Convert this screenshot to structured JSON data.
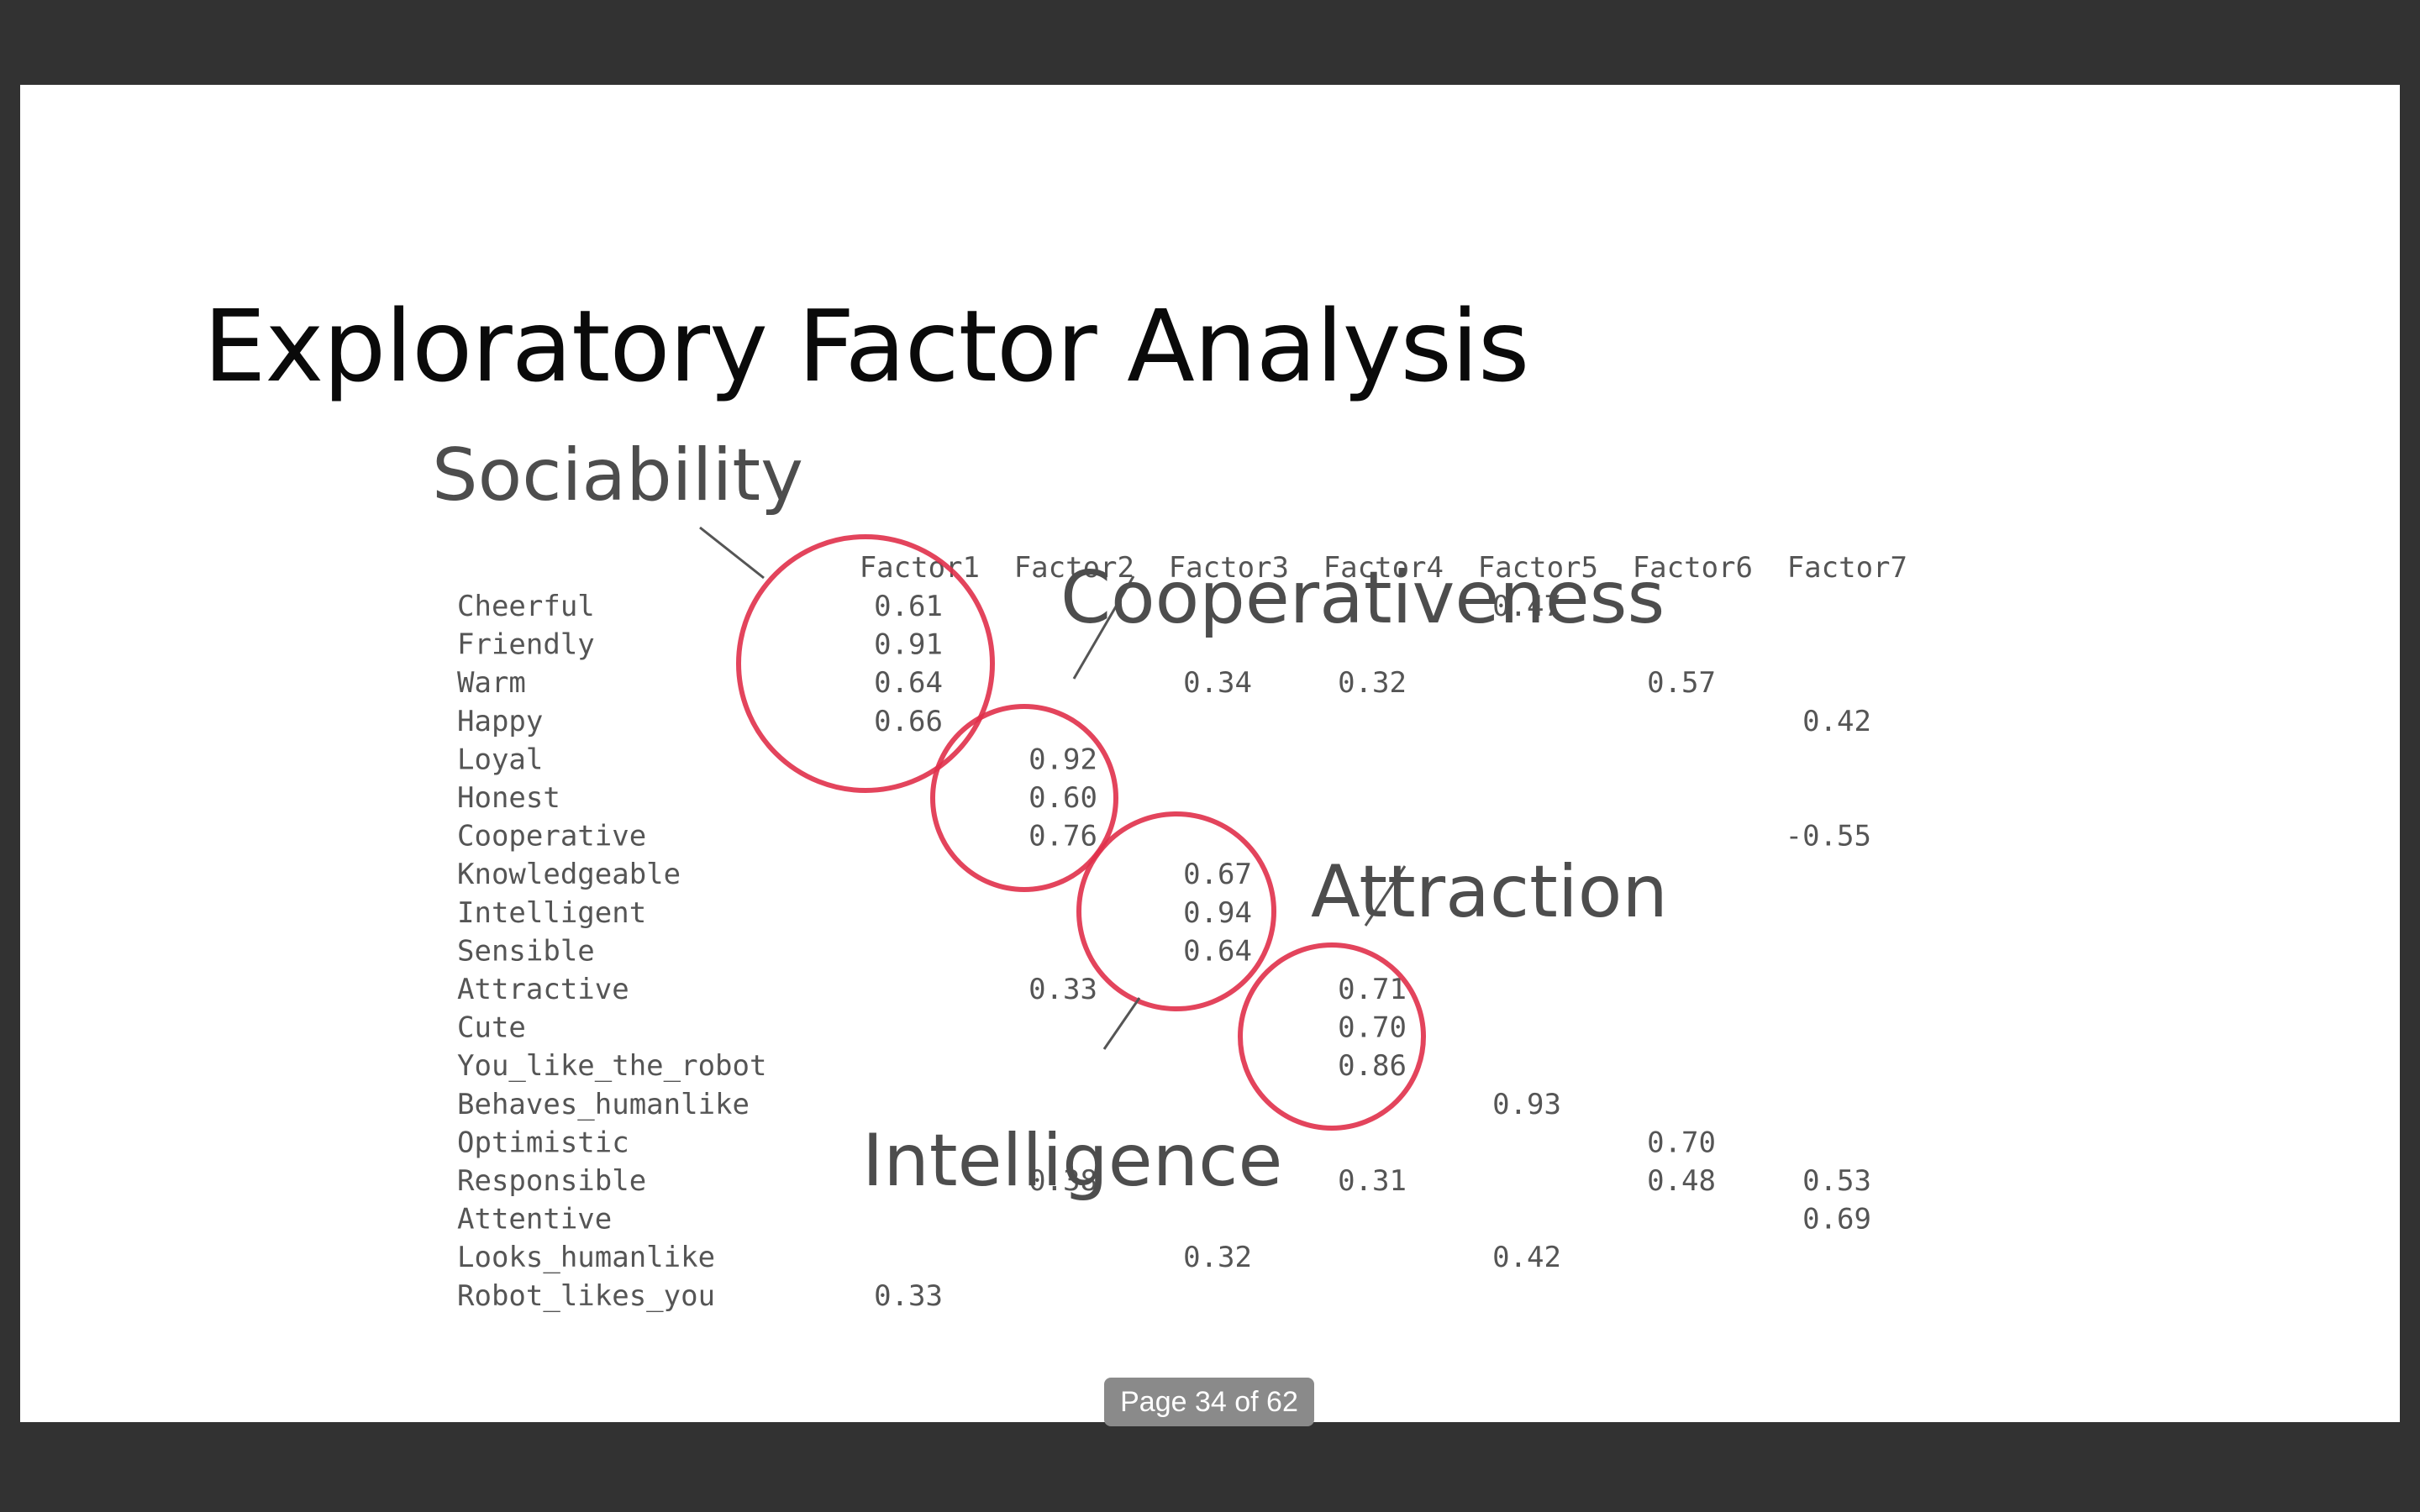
{
  "slide": {
    "title": "Exploratory Factor Analysis"
  },
  "factor_labels": {
    "sociability": "Sociability",
    "cooperativeness": "Cooperativeness",
    "attraction": "Attraction",
    "intelligence": "Intelligence"
  },
  "table": {
    "columns": [
      "Factor1",
      "Factor2",
      "Factor3",
      "Factor4",
      "Factor5",
      "Factor6",
      "Factor7"
    ],
    "rows": [
      {
        "label": "Cheerful",
        "values": [
          "0.61",
          "",
          "",
          "",
          "0.47",
          "",
          ""
        ]
      },
      {
        "label": "Friendly",
        "values": [
          "0.91",
          "",
          "",
          "",
          "",
          "",
          ""
        ]
      },
      {
        "label": "Warm",
        "values": [
          "0.64",
          "",
          "0.34",
          "0.32",
          "",
          "0.57",
          ""
        ]
      },
      {
        "label": "Happy",
        "values": [
          "0.66",
          "",
          "",
          "",
          "",
          "",
          "0.42"
        ]
      },
      {
        "label": "Loyal",
        "values": [
          "",
          "0.92",
          "",
          "",
          "",
          "",
          ""
        ]
      },
      {
        "label": "Honest",
        "values": [
          "",
          "0.60",
          "",
          "",
          "",
          "",
          ""
        ]
      },
      {
        "label": "Cooperative",
        "values": [
          "",
          "0.76",
          "",
          "",
          "",
          "",
          "-0.55"
        ]
      },
      {
        "label": "Knowledgeable",
        "values": [
          "",
          "",
          "0.67",
          "",
          "",
          "",
          ""
        ]
      },
      {
        "label": "Intelligent",
        "values": [
          "",
          "",
          "0.94",
          "",
          "",
          "",
          ""
        ]
      },
      {
        "label": "Sensible",
        "values": [
          "",
          "",
          "0.64",
          "",
          "",
          "",
          ""
        ]
      },
      {
        "label": "Attractive",
        "values": [
          "",
          "0.33",
          "",
          "0.71",
          "",
          "",
          ""
        ]
      },
      {
        "label": "Cute",
        "values": [
          "",
          "",
          "",
          "0.70",
          "",
          "",
          ""
        ]
      },
      {
        "label": "You_like_the_robot",
        "values": [
          "",
          "",
          "",
          "0.86",
          "",
          "",
          ""
        ]
      },
      {
        "label": "Behaves_humanlike",
        "values": [
          "",
          "",
          "",
          "",
          "0.93",
          "",
          ""
        ]
      },
      {
        "label": "Optimistic",
        "values": [
          "",
          "",
          "",
          "",
          "",
          "0.70",
          ""
        ]
      },
      {
        "label": "Responsible",
        "values": [
          "",
          "0.38",
          "",
          "0.31",
          "",
          "0.48",
          "0.53"
        ]
      },
      {
        "label": "Attentive",
        "values": [
          "",
          "",
          "",
          "",
          "",
          "",
          "0.69"
        ]
      },
      {
        "label": "Looks_humanlike",
        "values": [
          "",
          "",
          "0.32",
          "",
          "0.42",
          "",
          ""
        ]
      },
      {
        "label": "Robot_likes_you",
        "values": [
          "0.33",
          "",
          "",
          "",
          "",
          "",
          ""
        ]
      }
    ]
  },
  "viewer": {
    "page_indicator": "Page 34 of 62"
  },
  "colors": {
    "highlight_ring": "#e0304a",
    "slide_background": "#ffffff",
    "viewer_background": "#323232"
  }
}
